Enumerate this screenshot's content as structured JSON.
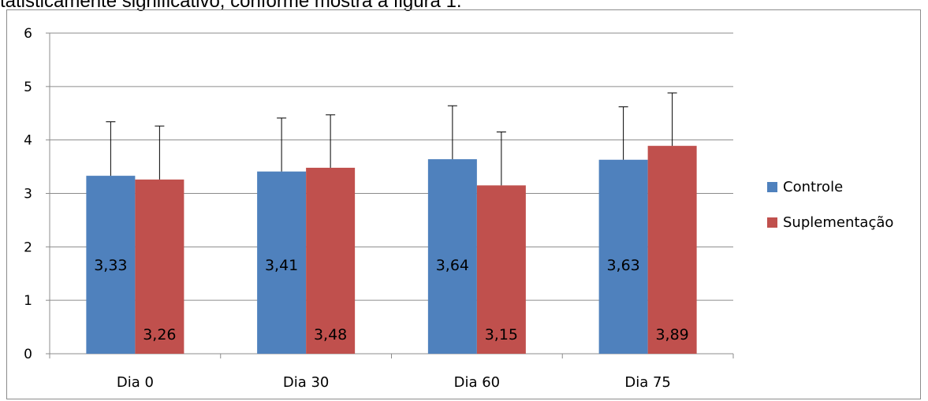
{
  "page": {
    "heading_text": "tatisticamente significativo, conforme mostra a figura 1."
  },
  "chart_data": {
    "type": "bar",
    "categories": [
      "Dia 0",
      "Dia 30",
      "Dia 60",
      "Dia 75"
    ],
    "series": [
      {
        "name": "Controle",
        "values": [
          3.33,
          3.41,
          3.64,
          3.63
        ],
        "labels": [
          "3,33",
          "3,41",
          "3,64",
          "3,63"
        ],
        "error": [
          1.01,
          1.0,
          1.0,
          0.99
        ],
        "color": "#4f81bd"
      },
      {
        "name": "Suplementação",
        "values": [
          3.26,
          3.48,
          3.15,
          3.89
        ],
        "labels": [
          "3,26",
          "3,48",
          "3,15",
          "3,89"
        ],
        "error": [
          1.0,
          0.99,
          1.0,
          0.99
        ],
        "color": "#c0504d"
      }
    ],
    "ylim": [
      0,
      6
    ],
    "yticks": [
      "0",
      "1",
      "2",
      "3",
      "4",
      "5",
      "6"
    ],
    "grid": true,
    "legend_position": "right",
    "error_bars": true
  }
}
